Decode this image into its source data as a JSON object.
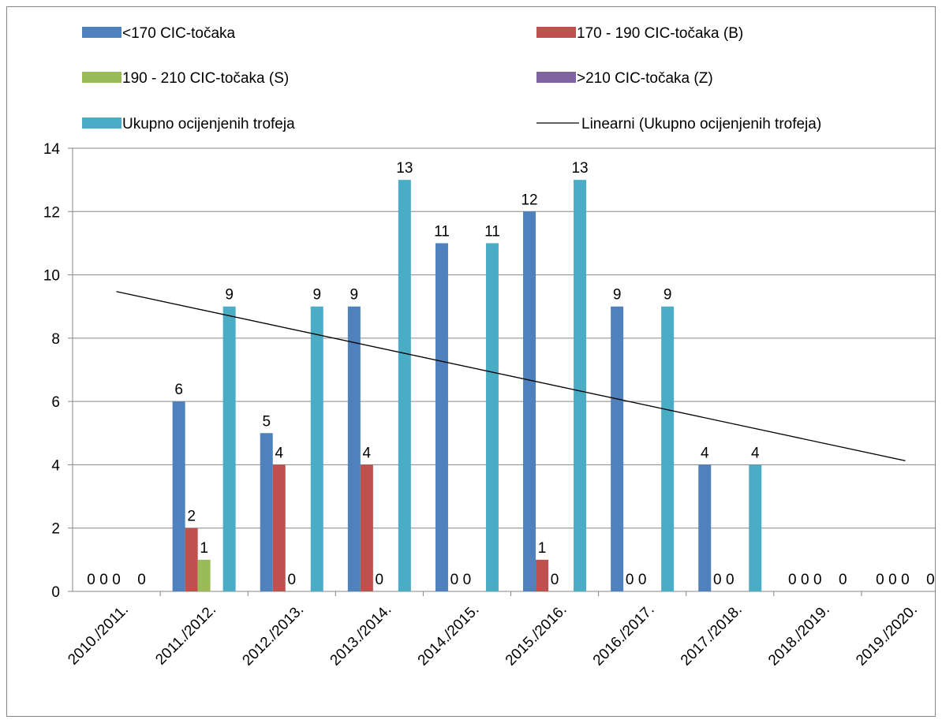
{
  "chart_data": {
    "type": "bar",
    "categories": [
      "2010./2011.",
      "2011./2012.",
      "2012./2013.",
      "2013./2014.",
      "2014./2015.",
      "2015./2016.",
      "2016./2017.",
      "2017./2018.",
      "2018./2019.",
      "2019./2020."
    ],
    "series": [
      {
        "name": "<170 CIC-točaka",
        "color": "#4F81BD",
        "values": [
          0,
          6,
          5,
          9,
          11,
          12,
          9,
          4,
          0,
          0
        ]
      },
      {
        "name": "170 - 190 CIC-točaka (B)",
        "color": "#C0504D",
        "values": [
          0,
          2,
          4,
          4,
          0,
          1,
          0,
          0,
          0,
          0
        ]
      },
      {
        "name": "190 - 210 CIC-točaka (S)",
        "color": "#9BBB59",
        "values": [
          0,
          1,
          0,
          0,
          0,
          0,
          0,
          0,
          0,
          0
        ]
      },
      {
        "name": ">210 CIC-točaka (Z)",
        "color": "#8064A2",
        "values": [
          null,
          null,
          null,
          null,
          null,
          null,
          null,
          null,
          null,
          null
        ]
      },
      {
        "name": "Ukupno ocijenjenih trofeja",
        "color": "#4BACC6",
        "values": [
          0,
          9,
          9,
          13,
          11,
          13,
          9,
          4,
          0,
          0
        ]
      }
    ],
    "trendline": {
      "name": "Linearni (Ukupno ocijenjenih trofeja)",
      "color": "#000000",
      "type": "linear"
    },
    "ylim": [
      0,
      14
    ],
    "yticks": [
      0,
      2,
      4,
      6,
      8,
      10,
      12,
      14
    ],
    "grid": true,
    "legend_position": "top",
    "data_labels": true
  }
}
